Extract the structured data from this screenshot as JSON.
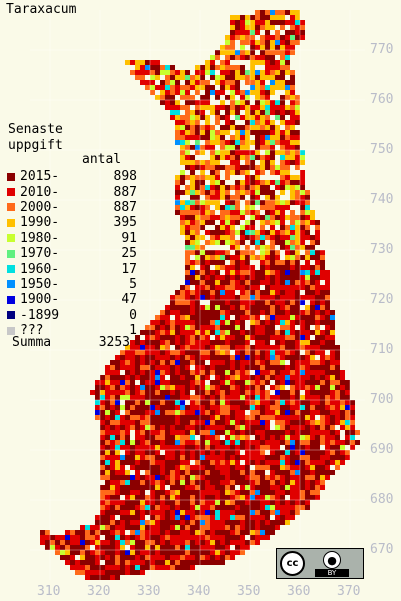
{
  "title": "Taraxacum",
  "legend": {
    "heading_line1": "Senaste",
    "heading_line2": "uppgift",
    "count_header": "antal",
    "rows": [
      {
        "label": "2015-",
        "count": "898",
        "color": "#8b0000"
      },
      {
        "label": "2010-",
        "count": "887",
        "color": "#e00000"
      },
      {
        "label": "2000-",
        "count": "887",
        "color": "#ff6a1a"
      },
      {
        "label": "1990-",
        "count": "395",
        "color": "#ffc000"
      },
      {
        "label": "1980-",
        "count": "91",
        "color": "#c8ff30"
      },
      {
        "label": "1970-",
        "count": "25",
        "color": "#60f080"
      },
      {
        "label": "1960-",
        "count": "17",
        "color": "#00e0e0"
      },
      {
        "label": "1950-",
        "count": "5",
        "color": "#0090ff"
      },
      {
        "label": "1900-",
        "count": "47",
        "color": "#0000e0"
      },
      {
        "label": "-1899",
        "count": "0",
        "color": "#000080"
      },
      {
        "label": "???",
        "count": "1",
        "color": "#c8c8c8"
      }
    ],
    "total_label": "Summa",
    "total_count": "3253"
  },
  "y_axis_labels": [
    "770",
    "760",
    "750",
    "740",
    "730",
    "720",
    "710",
    "700",
    "690",
    "680",
    "670"
  ],
  "x_axis_labels": [
    "310",
    "320",
    "330",
    "340",
    "350",
    "360",
    "370"
  ],
  "license_badge": {
    "cc_text": "cc",
    "by_text": "BY",
    "icon": "person-icon"
  }
}
